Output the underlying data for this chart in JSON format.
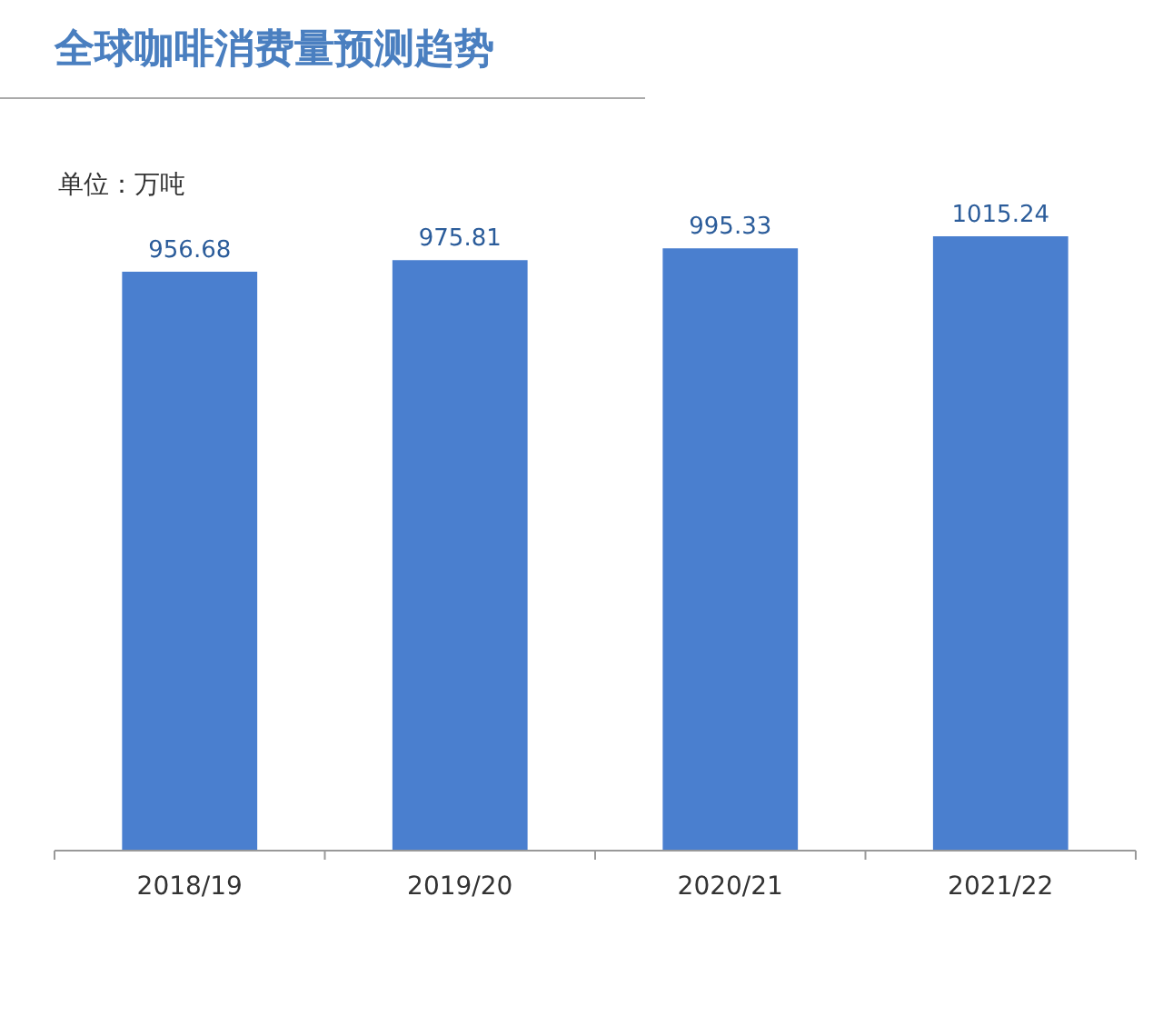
{
  "chart_data": {
    "type": "bar",
    "title": "全球咖啡消费量预测趋势",
    "subtitle": "单位：万吨",
    "categories": [
      "2018/19",
      "2019/20",
      "2020/21",
      "2021/22"
    ],
    "values": [
      956.68,
      975.81,
      995.33,
      1015.24
    ],
    "color": "#4a7fcf",
    "data_labels": true,
    "tick_labels": "x",
    "grid": false
  }
}
